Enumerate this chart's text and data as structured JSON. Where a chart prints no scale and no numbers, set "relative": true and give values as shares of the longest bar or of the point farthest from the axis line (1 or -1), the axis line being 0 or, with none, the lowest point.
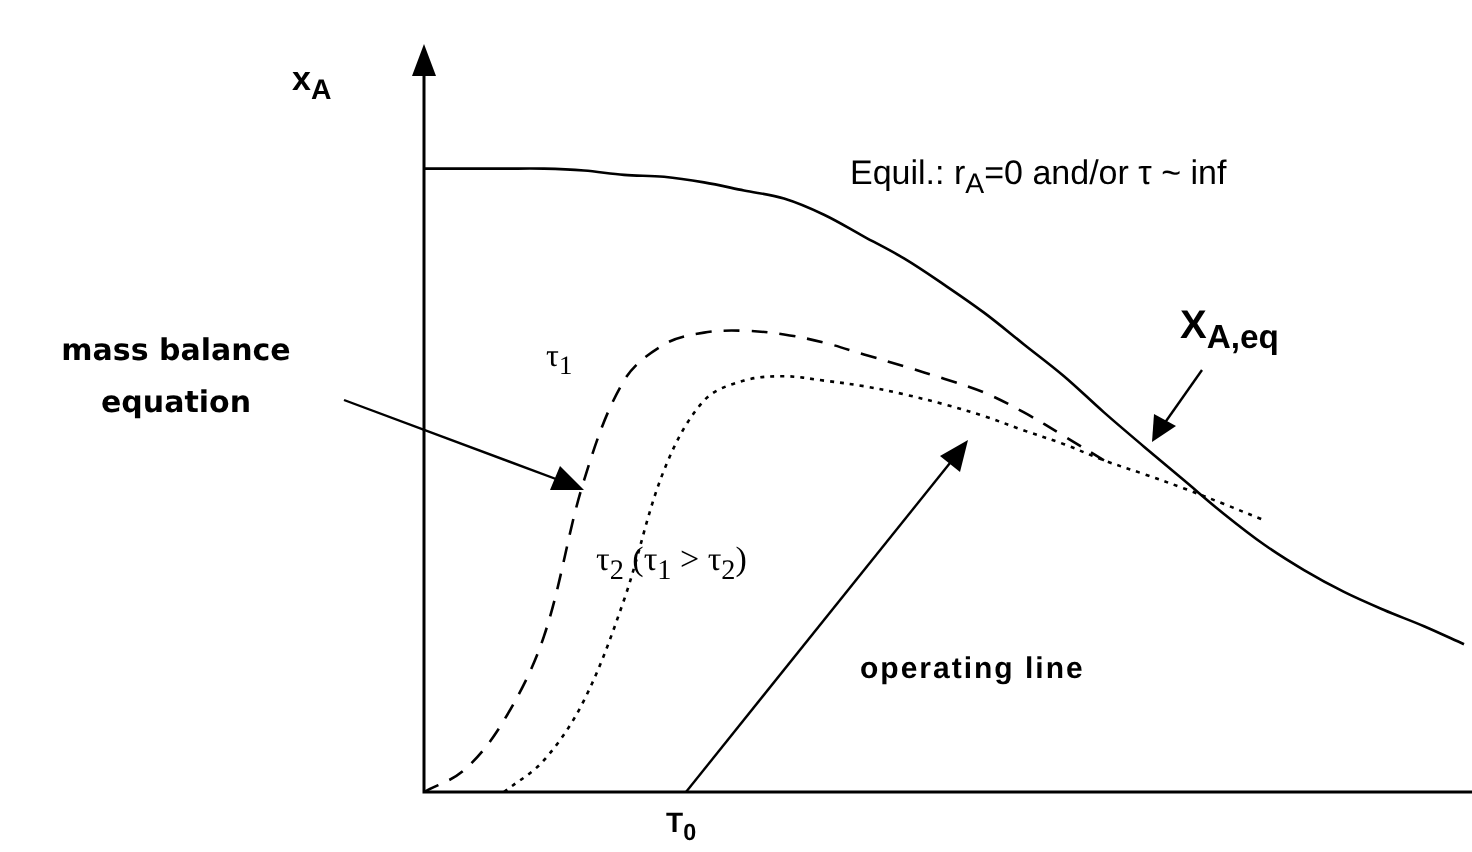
{
  "chart_data": {
    "type": "line",
    "relative": true,
    "ylabel": "x$_{A}$",
    "categories": [
      null,
      null,
      null,
      null,
      null,
      null,
      null,
      null,
      null,
      null,
      null,
      null,
      null,
      null,
      null,
      null,
      null,
      null,
      null,
      null,
      null,
      null,
      null,
      null,
      null,
      null,
      null
    ],
    "series": [
      {
        "name": "X$_{A,eq}$",
        "color": "#000000",
        "line_style": "solid",
        "values": [
          1,
          1,
          1,
          1,
          0.997,
          0.99,
          0.987,
          0.978,
          0.965,
          0.952,
          0.926,
          0.891,
          0.856,
          0.814,
          0.769,
          0.718,
          0.667,
          0.609,
          0.554,
          0.5,
          0.446,
          0.397,
          0.356,
          0.321,
          0.292,
          0.266,
          0.237
        ]
      },
      {
        "name": "τ$_{1}$",
        "color": "#000000",
        "line_style": "dashed",
        "values": [
          0,
          0.035,
          0.115,
          0.25,
          0.5,
          0.66,
          0.718,
          0.737,
          0.74,
          0.734,
          0.721,
          0.702,
          0.683,
          0.663,
          0.641,
          0.609,
          0.571,
          0.532,
          null,
          null,
          null,
          null,
          null,
          null,
          null,
          null,
          null
        ]
      },
      {
        "name": "τ$_{2}$ (τ$_{1}$ > τ$_{2}$)",
        "color": "#000000",
        "line_style": "dotted",
        "values": [
          null,
          null,
          0,
          0.051,
          0.147,
          0.308,
          0.516,
          0.628,
          0.66,
          0.667,
          0.66,
          0.651,
          0.638,
          0.622,
          0.603,
          0.58,
          0.558,
          0.532,
          0.51,
          0.487,
          0.462,
          0.436,
          null,
          null,
          null,
          null,
          null
        ]
      }
    ],
    "annotations": [
      "Equil.: r$_{A}$=0 and/or  τ ~ inf",
      "mass balance equation",
      "operating line",
      "T$_{0}$"
    ],
    "legend": false,
    "marker": "none"
  }
}
